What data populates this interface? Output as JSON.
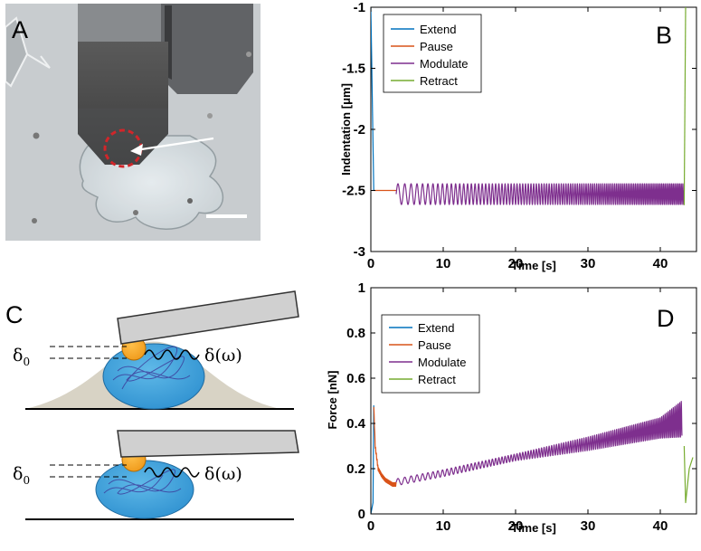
{
  "panels": {
    "A": "A",
    "B": "B",
    "C": "C",
    "D": "D"
  },
  "schematic": {
    "delta0_symbol": "δ",
    "delta0_subscript": "0",
    "delta_omega": "δ(ω)"
  },
  "colors": {
    "extend": "#0072BD",
    "pause": "#D95319",
    "modulate": "#7E2F8E",
    "retract": "#77AC30"
  },
  "chart_data": [
    {
      "panel": "B",
      "type": "line",
      "xlabel": "Time [s]",
      "ylabel": "Indentation [μm]",
      "xlim": [
        0,
        45
      ],
      "ylim": [
        -3,
        -1
      ],
      "xticks": [
        0,
        10,
        20,
        30,
        40
      ],
      "yticks": [
        -1,
        -1.5,
        -2,
        -2.5,
        -3
      ],
      "series": [
        {
          "name": "Extend",
          "color": "#0072BD",
          "x": [
            0,
            0.4,
            0.4
          ],
          "y": [
            -1,
            -2.5,
            -2.5
          ]
        },
        {
          "name": "Pause",
          "color": "#D95319",
          "x": [
            0.4,
            3.5
          ],
          "y": [
            -2.5,
            -2.5
          ]
        },
        {
          "name": "Modulate",
          "color": "#7E2F8E",
          "x_start": 3.5,
          "x_end": 43.3,
          "baseline": -2.53,
          "amplitude": 0.085,
          "frequency_hz": 1
        },
        {
          "name": "Retract",
          "color": "#77AC30",
          "x": [
            43.3,
            43.5
          ],
          "y": [
            -2.62,
            -1
          ]
        }
      ]
    },
    {
      "panel": "D",
      "type": "line",
      "xlabel": "Time [s]",
      "ylabel": "Force [nN]",
      "xlim": [
        0,
        45
      ],
      "ylim": [
        0,
        1
      ],
      "xticks": [
        0,
        10,
        20,
        30,
        40
      ],
      "yticks": [
        0,
        0.2,
        0.4,
        0.6,
        0.8,
        1
      ],
      "series": [
        {
          "name": "Extend",
          "color": "#0072BD",
          "x": [
            0,
            0.3,
            0.4
          ],
          "y": [
            0,
            0.05,
            0.48
          ]
        },
        {
          "name": "Pause",
          "color": "#D95319",
          "x": [
            0.4,
            0.6,
            1.0,
            1.5,
            2.0,
            2.5,
            3.0,
            3.5
          ],
          "y": [
            0.48,
            0.3,
            0.2,
            0.17,
            0.15,
            0.14,
            0.13,
            0.13
          ]
        },
        {
          "name": "Modulate",
          "color": "#7E2F8E",
          "x": [
            3.5,
            10,
            20,
            30,
            40,
            43
          ],
          "y": [
            0.14,
            0.18,
            0.25,
            0.31,
            0.38,
            0.42
          ],
          "amplitude": [
            0.015,
            0.015,
            0.015,
            0.03,
            0.045,
            0.08
          ]
        },
        {
          "name": "Retract",
          "color": "#77AC30",
          "x": [
            43.3,
            43.5,
            44,
            44.5
          ],
          "y": [
            0.3,
            0.05,
            0.2,
            0.25
          ]
        }
      ]
    }
  ]
}
